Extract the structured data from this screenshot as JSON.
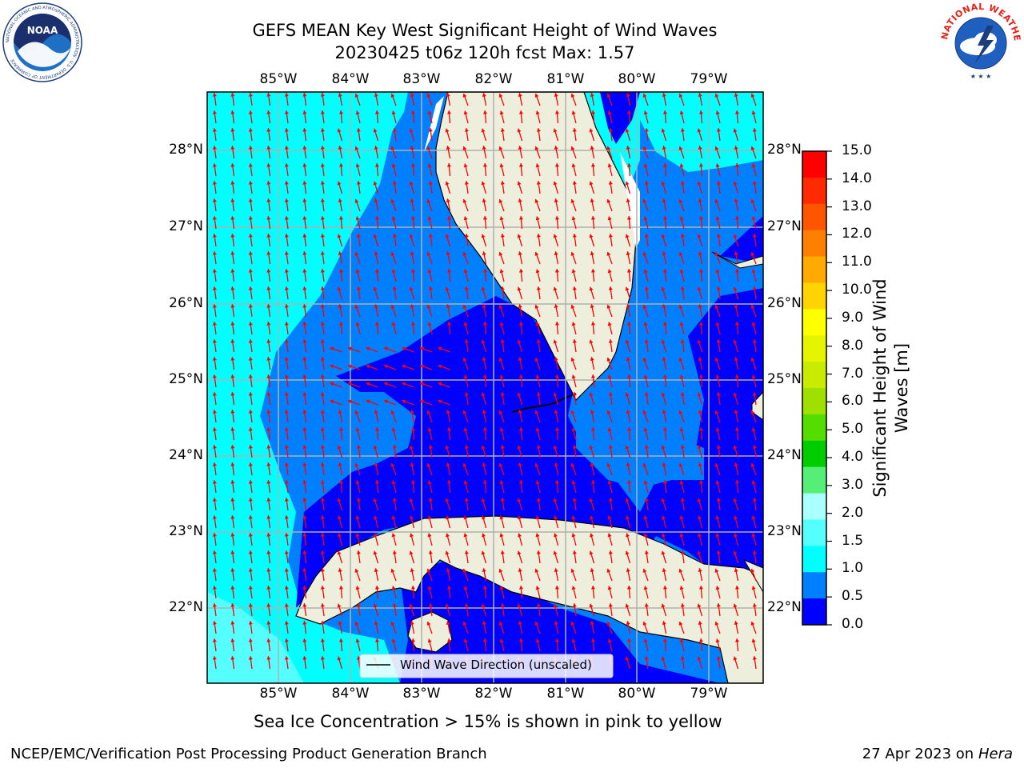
{
  "title": {
    "line1": "GEFS MEAN Key West Significant Height of Wind Waves",
    "line2": "20230425 t06z 120h fcst   Max: 1.57"
  },
  "map": {
    "lon_labels": [
      "85°W",
      "84°W",
      "83°W",
      "82°W",
      "81°W",
      "80°W",
      "79°W"
    ],
    "lat_labels": [
      "28°N",
      "27°N",
      "26°N",
      "25°N",
      "24°N",
      "23°N",
      "22°N"
    ],
    "legend_label": "Wind Wave Direction (unscaled)",
    "arrow_color": "#ff0000",
    "land_color": "#eeeedc",
    "grid_color": "#b0b0b0"
  },
  "colorbar": {
    "label_line1": "Significant Height of Wind",
    "label_line2": "Waves [m]",
    "ticks": [
      "15.0",
      "14.0",
      "13.0",
      "12.0",
      "11.0",
      "10.0",
      "9.0",
      "8.0",
      "7.0",
      "6.0",
      "5.0",
      "4.0",
      "3.0",
      "2.0",
      "1.5",
      "1.0",
      "0.5",
      "0.0"
    ],
    "colors": [
      "#ff0000",
      "#ff2a00",
      "#ff5500",
      "#ff8000",
      "#ffaa00",
      "#ffd400",
      "#ffff00",
      "#e5f500",
      "#c8eb00",
      "#a0e000",
      "#55dd00",
      "#00cc00",
      "#55ee77",
      "#aaffff",
      "#55ffff",
      "#00ffff",
      "#0080ff",
      "#0000ff"
    ]
  },
  "note": "Sea Ice Concentration > 15% is shown in pink to yellow",
  "footer": {
    "left": "NCEP/EMC/Verification Post Processing Product Generation Branch",
    "right_date": "27 Apr 2023 on ",
    "right_machine": "Hera"
  },
  "logos": {
    "noaa_text": "NOAA",
    "noaa_ring_text": "NATIONAL OCEANIC AND ATMOSPHERIC ADMINISTRATION · U.S. DEPARTMENT OF COMMERCE",
    "nws_ring_text": "NATIONAL WEATHER SERVICE"
  }
}
